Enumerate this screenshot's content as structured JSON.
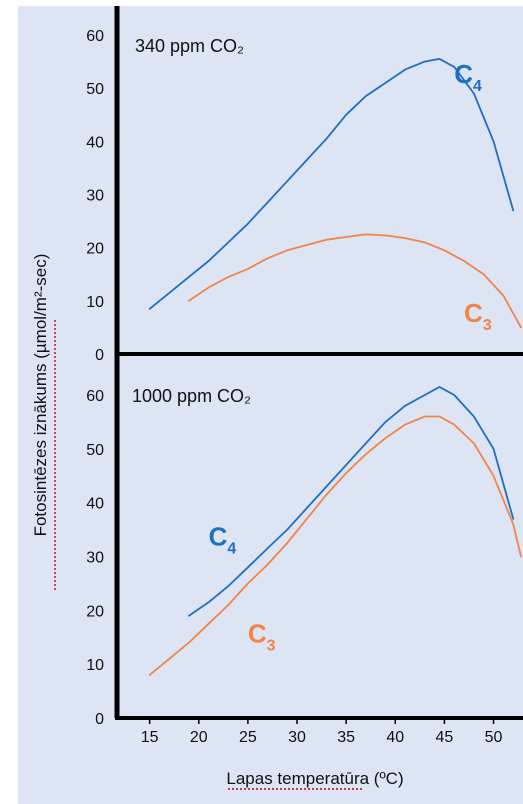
{
  "chart_data": [
    {
      "type": "line",
      "title": "340 ppm CO₂",
      "ylim": [
        0,
        60
      ],
      "y_ticks": [
        "0",
        "10",
        "20",
        "30",
        "40",
        "50",
        "60"
      ],
      "colors": {
        "C4": "#1f6fc0",
        "C3": "#f28447"
      },
      "series": [
        {
          "name": "C4",
          "x": [
            15,
            17,
            19,
            21,
            23,
            25,
            27,
            29,
            31,
            33,
            35,
            37,
            39,
            41,
            43,
            44.5,
            46,
            48,
            50,
            52
          ],
          "y": [
            8.5,
            11.5,
            14.5,
            17.5,
            21,
            24.5,
            28.5,
            32.5,
            36.5,
            40.5,
            45,
            48.5,
            51,
            53.5,
            55,
            55.5,
            54,
            49,
            40,
            27
          ]
        },
        {
          "name": "C3",
          "x": [
            19,
            21,
            23,
            25,
            27,
            29,
            31,
            33,
            35,
            37,
            39,
            41,
            43,
            45,
            47,
            49,
            51,
            53
          ],
          "y": [
            10,
            12.5,
            14.5,
            16,
            18,
            19.5,
            20.5,
            21.5,
            22,
            22.5,
            22.3,
            21.8,
            21,
            19.5,
            17.5,
            15,
            11,
            5
          ]
        }
      ]
    },
    {
      "type": "line",
      "title": "1000 ppm CO₂",
      "ylim": [
        0,
        60
      ],
      "y_ticks": [
        "0",
        "10",
        "20",
        "30",
        "40",
        "50",
        "60"
      ],
      "x_ticks": [
        "15",
        "20",
        "25",
        "30",
        "35",
        "40",
        "45",
        "50"
      ],
      "xlim": [
        13,
        53
      ],
      "xlabel": "Lapas temperatūra (ºC)",
      "ylabel": "Fotosintēzes iznākums (µmol/m²-sec)",
      "colors": {
        "C4": "#1f6fc0",
        "C3": "#f28447"
      },
      "series": [
        {
          "name": "C4",
          "x": [
            19,
            21,
            23,
            25,
            27,
            29,
            31,
            33,
            35,
            37,
            39,
            41,
            43,
            44.5,
            46,
            48,
            50,
            52
          ],
          "y": [
            19,
            21.5,
            24.5,
            28,
            31.5,
            35,
            39,
            43,
            47,
            51,
            55,
            58,
            60,
            61.5,
            60,
            56,
            50,
            37
          ]
        },
        {
          "name": "C3",
          "x": [
            15,
            17,
            19,
            21,
            23,
            25,
            27,
            29,
            31,
            33,
            35,
            37,
            39,
            41,
            43,
            44.5,
            46,
            48,
            50,
            52,
            53
          ],
          "y": [
            8,
            11,
            14,
            17.5,
            21,
            25,
            28.5,
            32.5,
            37,
            41.5,
            45.5,
            49,
            52,
            54.5,
            56,
            56,
            54.5,
            51,
            45,
            36,
            30
          ]
        }
      ]
    }
  ]
}
